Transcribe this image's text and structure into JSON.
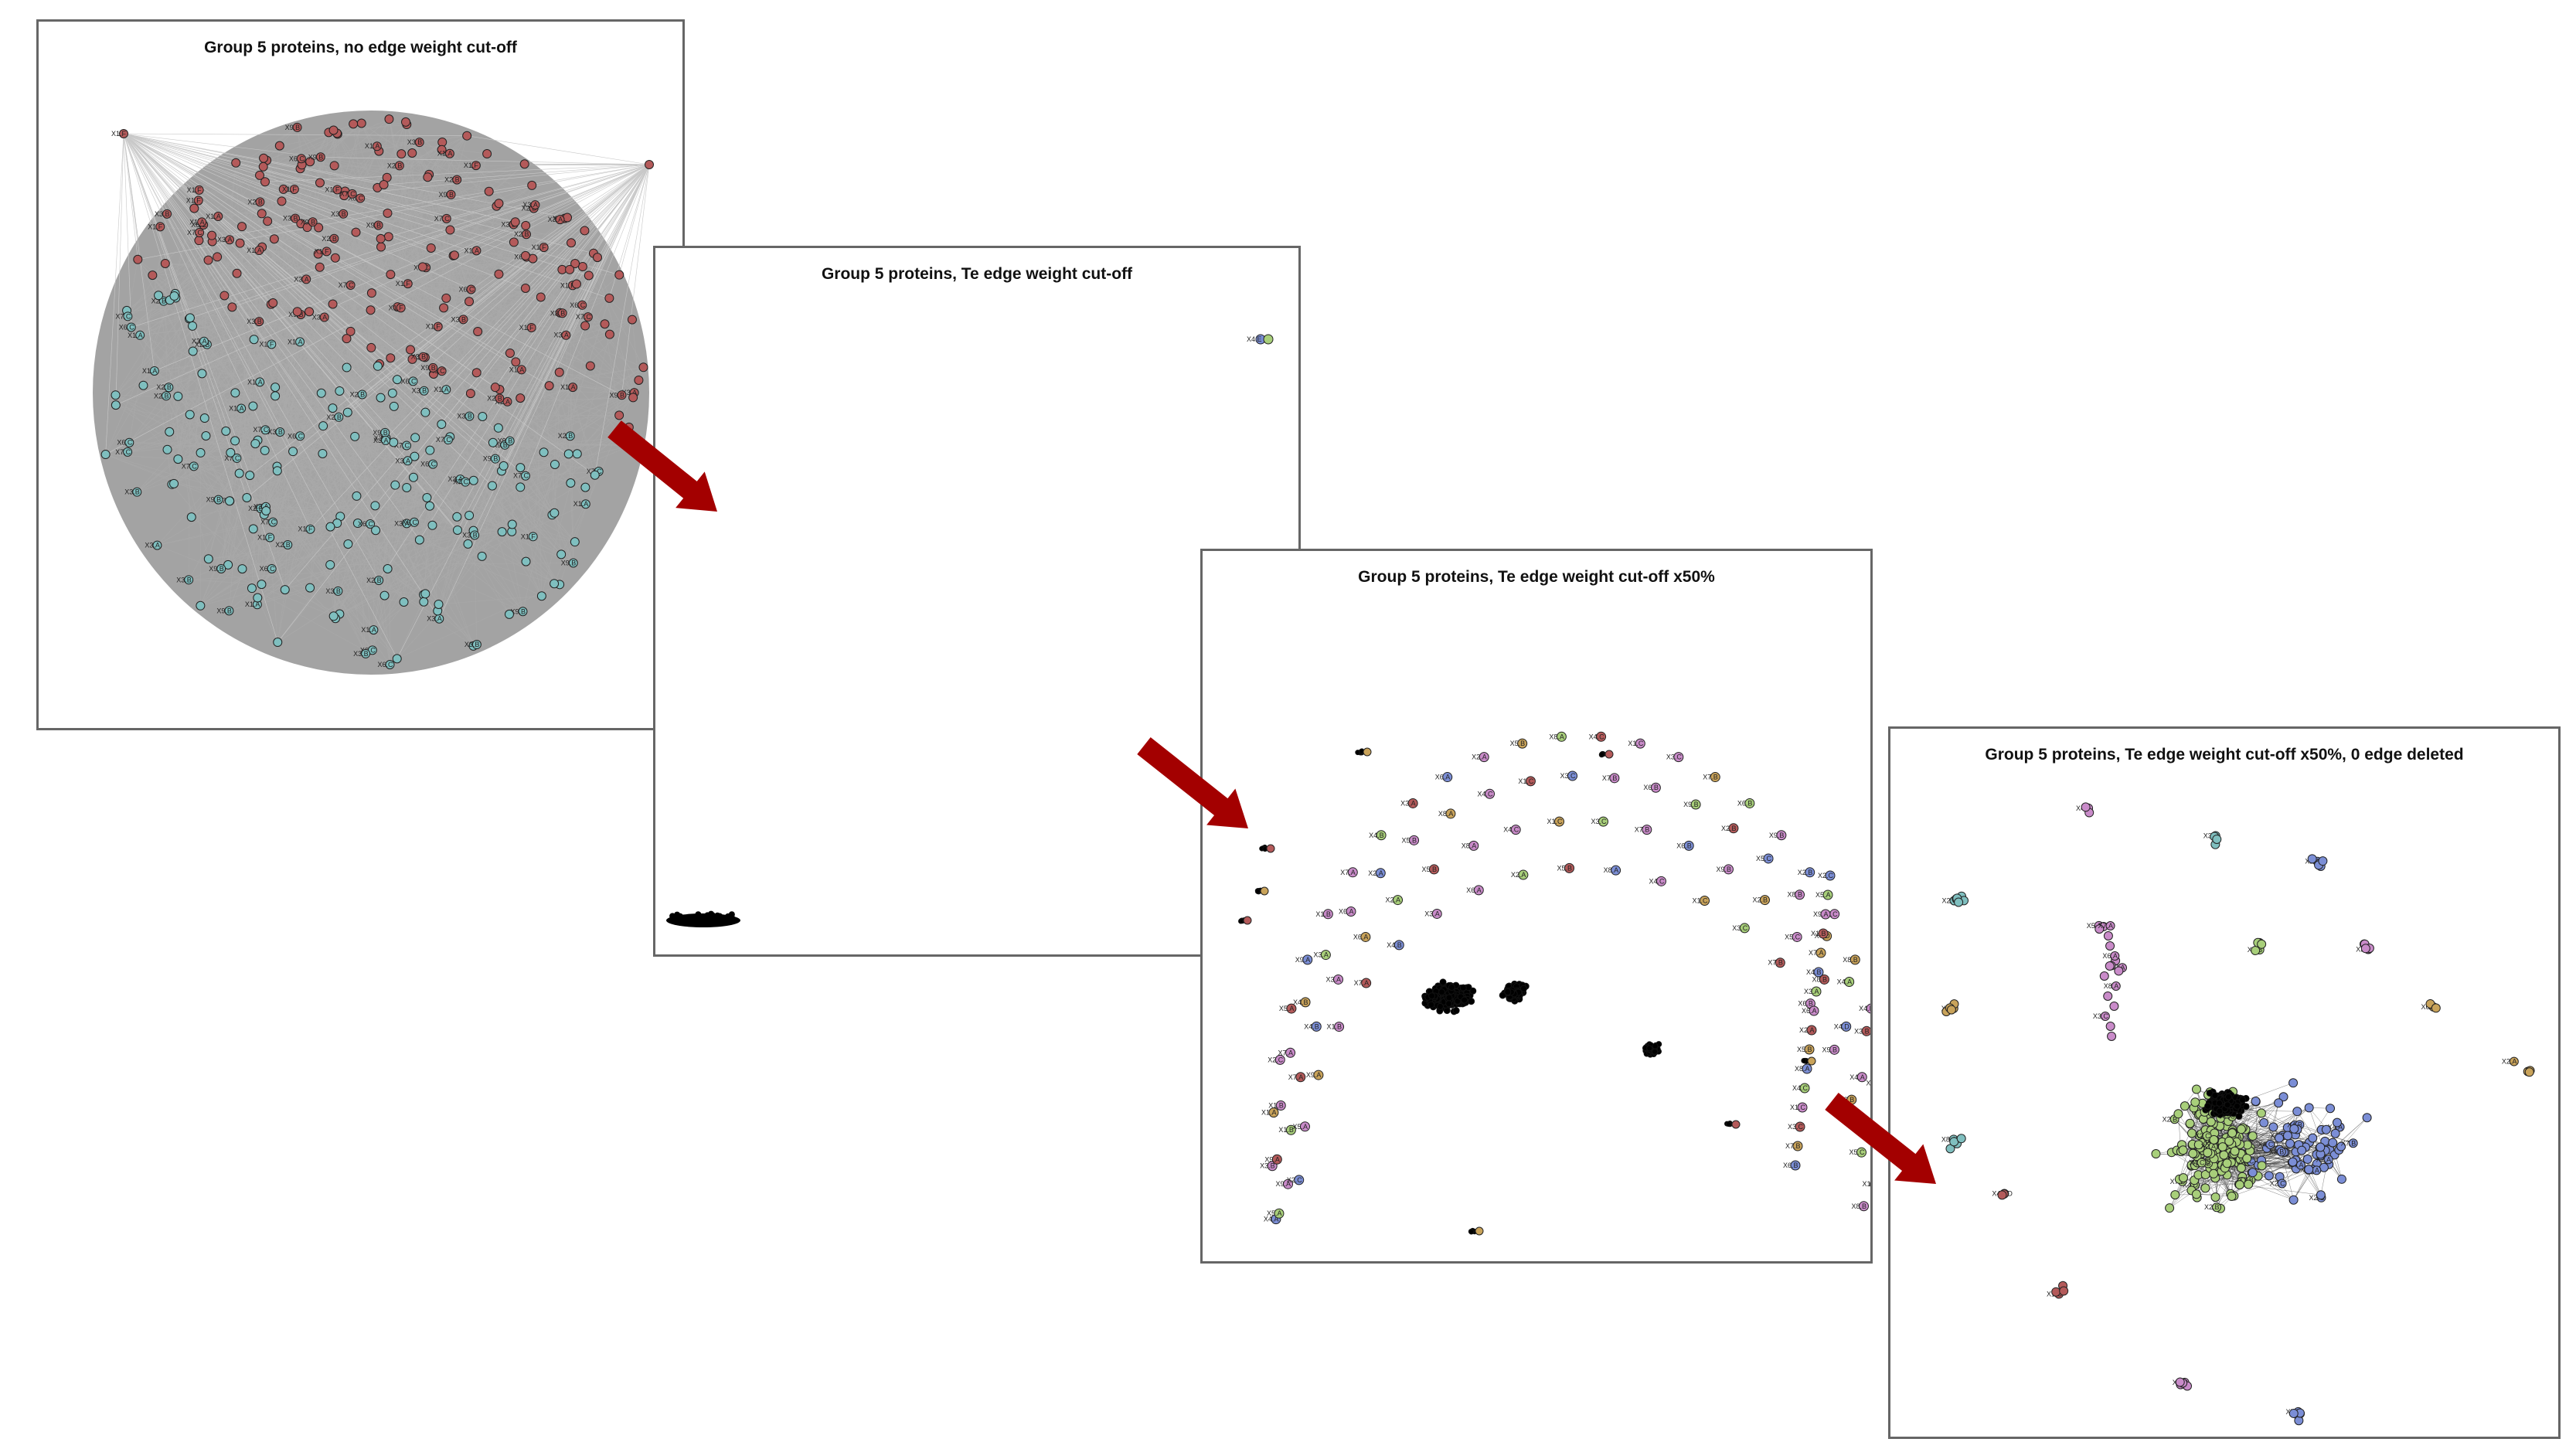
{
  "panels": [
    {
      "id": "p1",
      "title": "Group 5 proteins, no edge weight cut-off",
      "node_colors": [
        "#b45a5a",
        "#7fbfbf"
      ],
      "edge_color": "#aaaaaa",
      "node_labels": [
        "X3.A",
        "X4.A",
        "X8.A",
        "X1.A",
        "X2.A",
        "X5.B",
        "X6.C",
        "X7.A",
        "X9.A",
        "X3.B",
        "X4.C",
        "X2.2B",
        "X1.F",
        "X6.A",
        "X5.A",
        "X2.B",
        "X8.B",
        "X4.B",
        "X7.C",
        "X1.B",
        "X3.C",
        "X9.B",
        "X6.B",
        "X4.L2"
      ]
    },
    {
      "id": "p2",
      "title": "Group 5 proteins, Te edge weight cut-off",
      "node_colors": [
        "#7b8ed6",
        "#a8cf7a"
      ],
      "node_labels": [
        "X4.E",
        "X4.D"
      ]
    },
    {
      "id": "p3",
      "title": "Group 5 proteins, Te edge weight cut-off x50%",
      "node_colors": [
        "#7b8ed6",
        "#a8cf7a",
        "#c98bc9",
        "#b45a5a",
        "#c9a35a"
      ],
      "node_labels": [
        "X4.A",
        "X3.B",
        "X1.A",
        "X2.C",
        "X5.A",
        "X9.A",
        "X1.B",
        "X7.A",
        "X4.B",
        "X3.A",
        "X6.A",
        "X2.A",
        "X5.B",
        "X8.A",
        "X4.C",
        "X1.C",
        "X3.C",
        "X7.B",
        "X6.B",
        "X9.B",
        "X2.B",
        "X5.C",
        "X8.B",
        "X4.D"
      ]
    },
    {
      "id": "p4",
      "title": "Group 5 proteins, Te edge weight cut-off x50%, 0 edge deleted",
      "node_colors": [
        "#7b8ed6",
        "#a8cf7a",
        "#c98bc9",
        "#b45a5a",
        "#c9a35a",
        "#7fbfbf"
      ],
      "node_labels": [
        "X4.A",
        "X3.B",
        "X1.A",
        "X2.C",
        "X5.A",
        "X7.A",
        "X4.B",
        "X3.A",
        "X6.A",
        "X2.A",
        "X5.B",
        "X8.A",
        "X4.CD",
        "X1.C",
        "X3.C",
        "X7.B",
        "X6.B",
        "X9.B",
        "X2.B",
        "X5.C",
        "X8.B",
        "X4.D",
        "X1.B",
        "X9.A"
      ]
    }
  ],
  "arrow_color": "#a30000"
}
